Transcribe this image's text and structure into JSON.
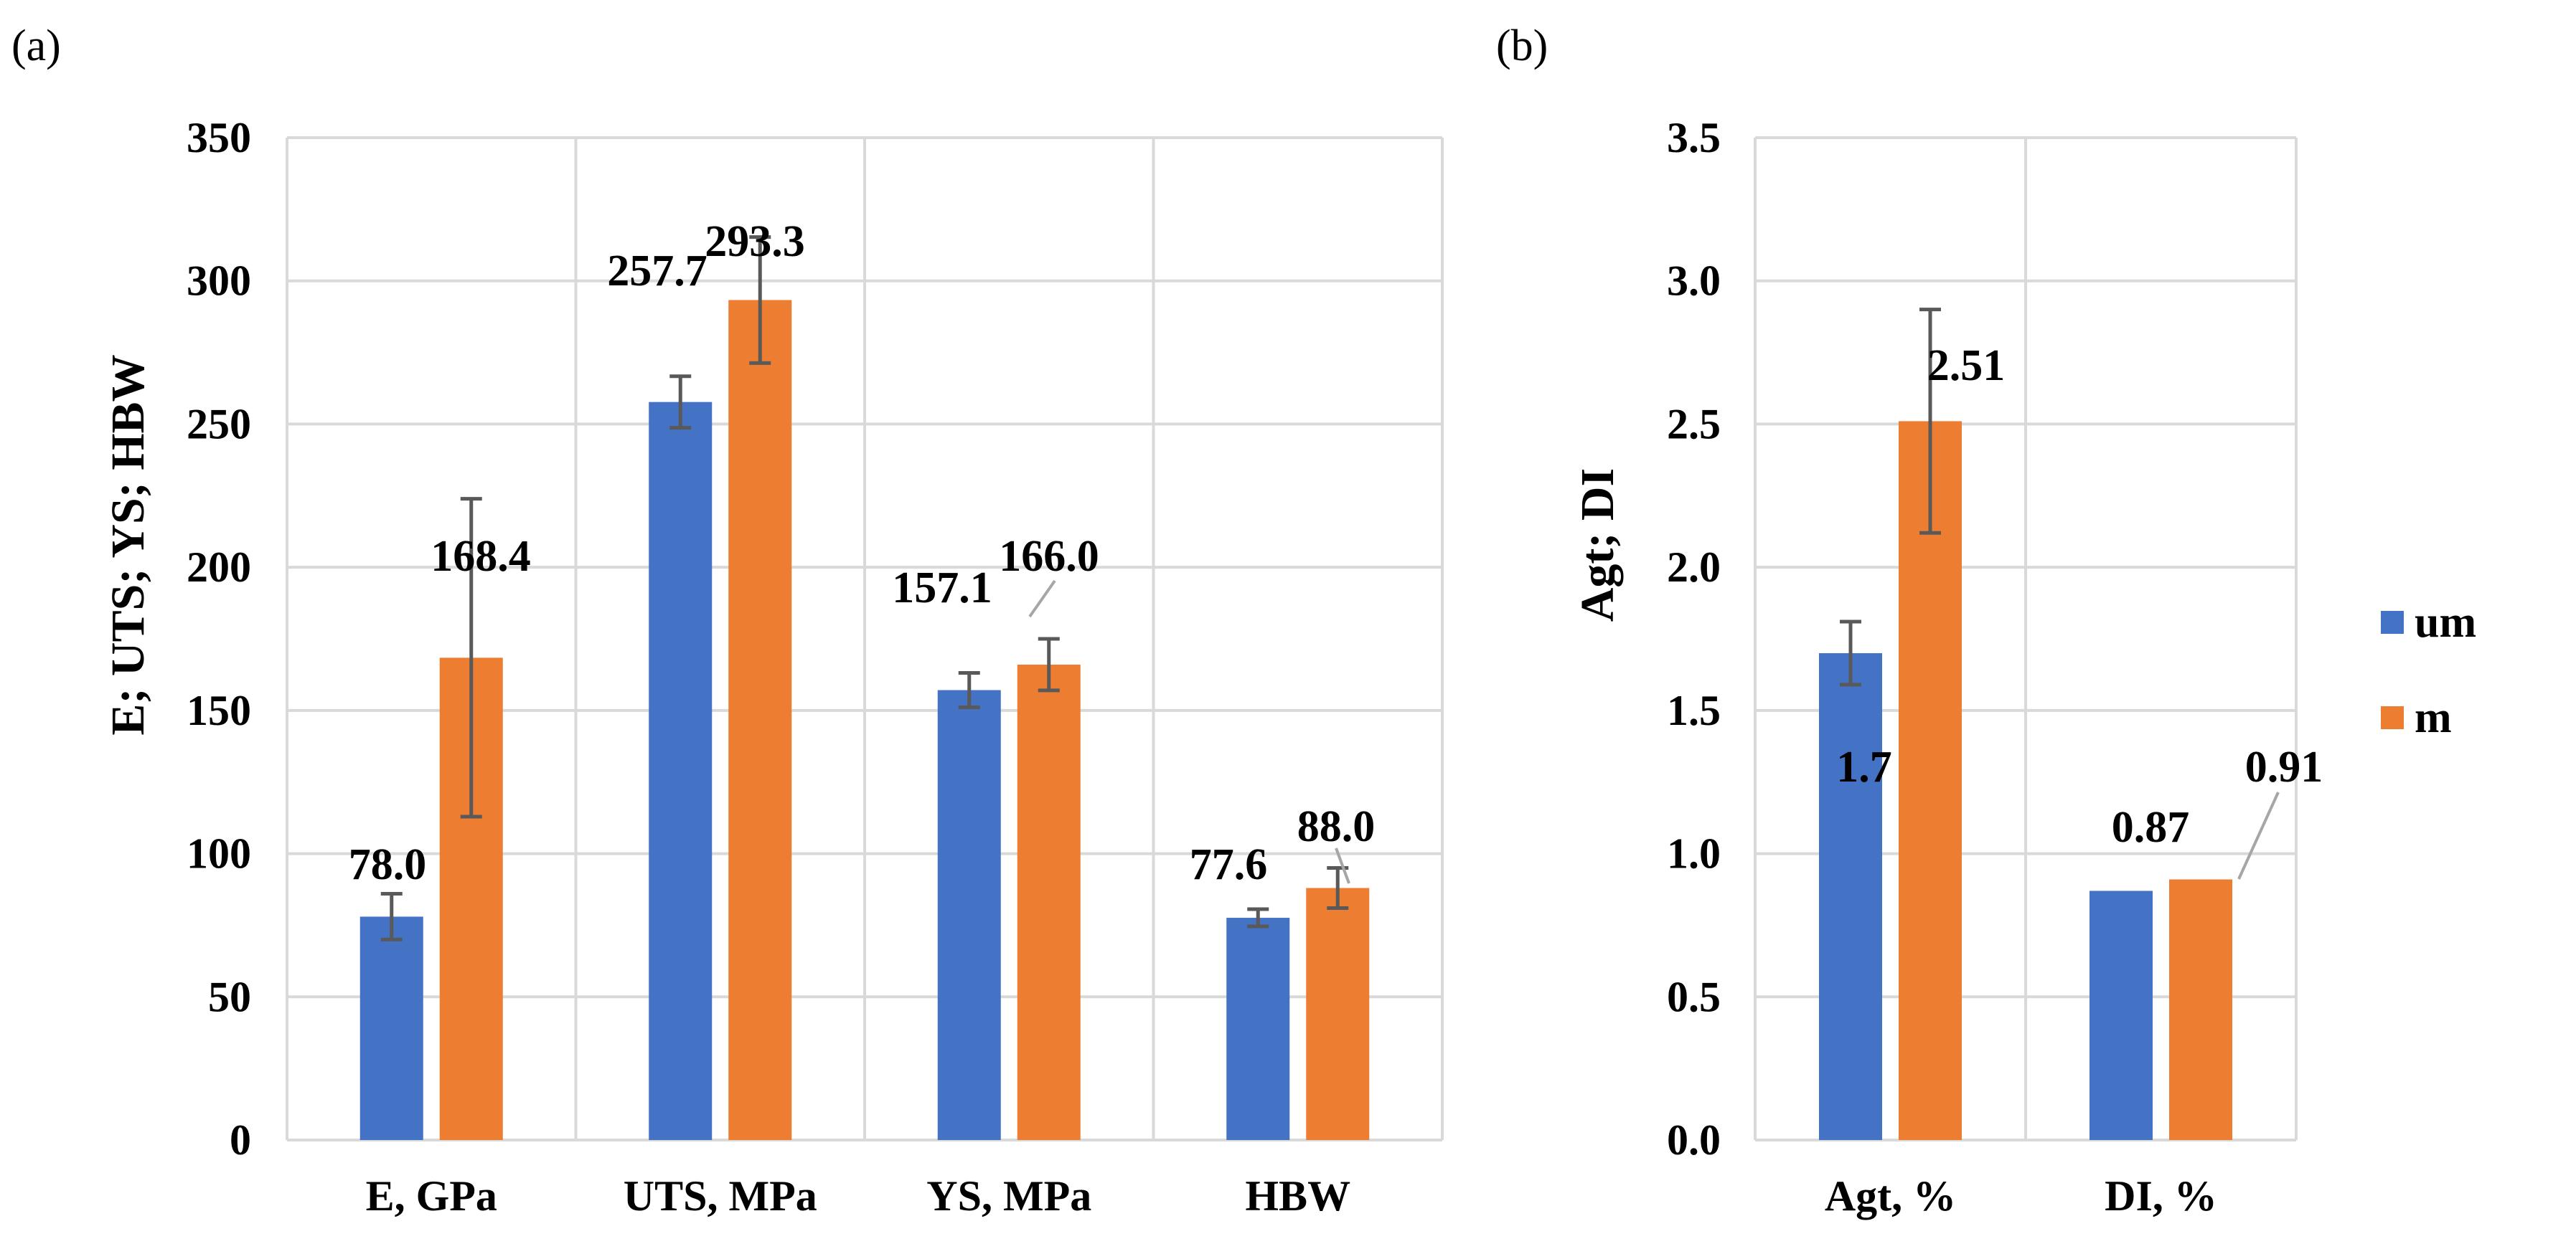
{
  "legend": [
    {
      "name": "um",
      "color": "#4472C4"
    },
    {
      "name": "m",
      "color": "#ED7D31"
    }
  ],
  "chart_data": [
    {
      "type": "bar",
      "panel_label": "(a)",
      "title": "",
      "ylabel": "E; UTS; YS; HBW",
      "xlabel": "",
      "ylim": [
        0,
        350
      ],
      "yticks": [
        "0",
        "50",
        "100",
        "150",
        "200",
        "250",
        "300",
        "350"
      ],
      "categories": [
        "E, GPa",
        "UTS, MPa",
        "YS, MPa",
        "HBW"
      ],
      "series": [
        {
          "name": "um",
          "color": "#4472C4",
          "values": [
            78.0,
            257.7,
            157.1,
            77.6
          ],
          "errors": [
            8,
            9,
            6,
            3
          ],
          "labels": [
            "78.0",
            "257.7",
            "157.1",
            "77.6"
          ]
        },
        {
          "name": "m",
          "color": "#ED7D31",
          "values": [
            168.4,
            293.3,
            166.0,
            88.0
          ],
          "errors": [
            55.5,
            22,
            9,
            7
          ],
          "labels": [
            "168.4",
            "293.3",
            "166.0",
            "88.0"
          ]
        }
      ],
      "grid": true
    },
    {
      "type": "bar",
      "panel_label": "(b)",
      "title": "",
      "ylabel": "Agt; DI",
      "xlabel": "",
      "ylim": [
        0,
        3.5
      ],
      "yticks": [
        "0.0",
        "0.5",
        "1.0",
        "1.5",
        "2.0",
        "2.5",
        "3.0",
        "3.5"
      ],
      "categories": [
        "Agt, %",
        "DI, %"
      ],
      "series": [
        {
          "name": "um",
          "color": "#4472C4",
          "values": [
            1.7,
            0.87
          ],
          "errors": [
            0.11,
            null
          ],
          "labels": [
            "1.7",
            "0.87"
          ]
        },
        {
          "name": "m",
          "color": "#ED7D31",
          "values": [
            2.51,
            0.91
          ],
          "errors": [
            0.39,
            null
          ],
          "labels": [
            "2.51",
            "0.91"
          ]
        }
      ],
      "grid": true
    }
  ]
}
